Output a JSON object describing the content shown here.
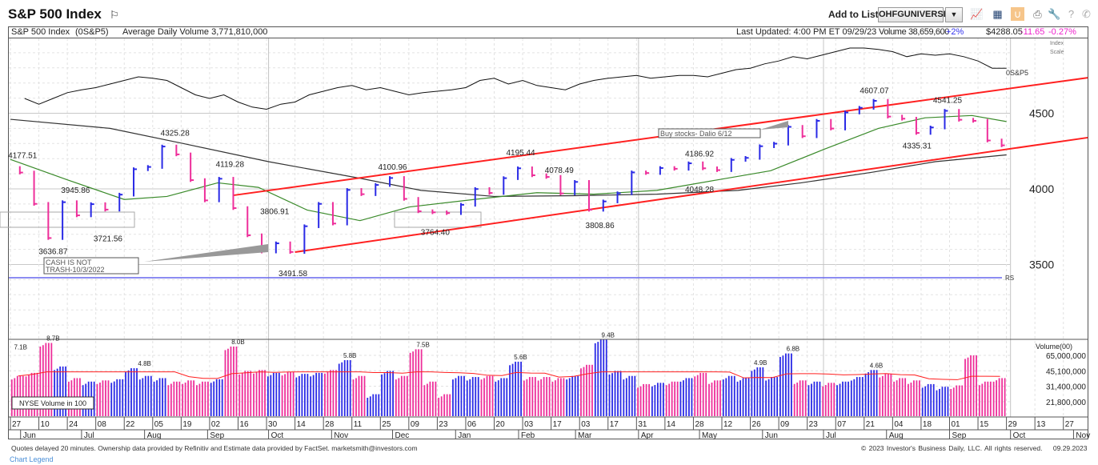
{
  "header": {
    "title": "S&P 500 Index",
    "add_to_list_label": "Add to List:",
    "list_value": "OHFGUNIVERSE",
    "icons": [
      "flag-icon",
      "chevron-down-icon",
      "chart-icon",
      "layout-icon",
      "pattern-icon",
      "print-icon",
      "wrench-icon",
      "help-icon",
      "phone-icon"
    ]
  },
  "infobar": {
    "name": "S&P 500 Index",
    "symbol": "(0S&P5)",
    "avg_volume": "Average Daily Volume 3,771,810,000",
    "last_updated": "Last Updated: 4:00 PM ET 09/29/23",
    "volume": "Volume 38,659,600",
    "volume_change": "+2%",
    "price": "$4288.05",
    "change": "-11.65",
    "change_pct": "-0.27%",
    "index_scale": "Index Scale"
  },
  "footer": {
    "disclaimer": "Quotes delayed 20 minutes. Ownership data provided by Refinitiv and Estimate data provided by FactSet. marketsmith@investors.com",
    "legend_link": "Chart Legend",
    "copyright": "© 2023 Investor's Business Daily, LLC. All rights reserved.",
    "date": "09.29.2023"
  },
  "chart_data": {
    "type": "bar",
    "colors": {
      "up": "#2a2ae6",
      "down": "#ee2e9a",
      "ma50": "#3a8a2a",
      "ma200": "#333333",
      "trend": "#ff2020",
      "volume_ma": "#ff2020",
      "rs": "#6666ee"
    },
    "y_ticks": [
      4500,
      4000,
      3500
    ],
    "ylim": [
      3050,
      4980
    ],
    "price_bars": [
      [
        "2022-06-03",
        4108
      ],
      [
        "2022-06-10",
        3901
      ],
      [
        "2022-06-17",
        3675
      ],
      [
        "2022-06-24",
        3912
      ],
      [
        "2022-07-01",
        3825
      ],
      [
        "2022-07-08",
        3899
      ],
      [
        "2022-07-15",
        3863
      ],
      [
        "2022-07-22",
        3962
      ],
      [
        "2022-07-29",
        4130
      ],
      [
        "2022-08-05",
        4145
      ],
      [
        "2022-08-12",
        4280
      ],
      [
        "2022-08-19",
        4228
      ],
      [
        "2022-08-26",
        4058
      ],
      [
        "2022-09-02",
        3924
      ],
      [
        "2022-09-09",
        4067
      ],
      [
        "2022-09-16",
        3873
      ],
      [
        "2022-09-23",
        3693
      ],
      [
        "2022-09-30",
        3586
      ],
      [
        "2022-10-07",
        3640
      ],
      [
        "2022-10-14",
        3583
      ],
      [
        "2022-10-21",
        3753
      ],
      [
        "2022-10-28",
        3901
      ],
      [
        "2022-11-04",
        3771
      ],
      [
        "2022-11-11",
        3993
      ],
      [
        "2022-11-18",
        3965
      ],
      [
        "2022-11-25",
        4026
      ],
      [
        "2022-12-02",
        4072
      ],
      [
        "2022-12-09",
        3934
      ],
      [
        "2022-12-16",
        3852
      ],
      [
        "2022-12-23",
        3845
      ],
      [
        "2022-12-30",
        3840
      ],
      [
        "2023-01-06",
        3895
      ],
      [
        "2023-01-13",
        3999
      ],
      [
        "2023-01-20",
        3973
      ],
      [
        "2023-01-27",
        4071
      ],
      [
        "2023-02-03",
        4136
      ],
      [
        "2023-02-10",
        4090
      ],
      [
        "2023-02-17",
        4079
      ],
      [
        "2023-02-24",
        3970
      ],
      [
        "2023-03-03",
        4046
      ],
      [
        "2023-03-10",
        3862
      ],
      [
        "2023-03-17",
        3917
      ],
      [
        "2023-03-24",
        3971
      ],
      [
        "2023-03-31",
        4109
      ],
      [
        "2023-04-07",
        4105
      ],
      [
        "2023-04-14",
        4138
      ],
      [
        "2023-04-21",
        4133
      ],
      [
        "2023-04-28",
        4169
      ],
      [
        "2023-05-05",
        4136
      ],
      [
        "2023-05-12",
        4124
      ],
      [
        "2023-05-19",
        4192
      ],
      [
        "2023-05-26",
        4205
      ],
      [
        "2023-06-02",
        4282
      ],
      [
        "2023-06-09",
        4299
      ],
      [
        "2023-06-16",
        4410
      ],
      [
        "2023-06-23",
        4348
      ],
      [
        "2023-06-30",
        4450
      ],
      [
        "2023-07-07",
        4399
      ],
      [
        "2023-07-14",
        4505
      ],
      [
        "2023-07-21",
        4536
      ],
      [
        "2023-07-28",
        4582
      ],
      [
        "2023-08-04",
        4478
      ],
      [
        "2023-08-11",
        4464
      ],
      [
        "2023-08-18",
        4370
      ],
      [
        "2023-08-25",
        4406
      ],
      [
        "2023-09-01",
        4516
      ],
      [
        "2023-09-08",
        4457
      ],
      [
        "2023-09-15",
        4450
      ],
      [
        "2023-09-22",
        4320
      ],
      [
        "2023-09-29",
        4288
      ]
    ],
    "volume_billions": [
      4.0,
      4.3,
      8.7,
      5.0,
      3.8,
      3.5,
      3.6,
      3.7,
      4.8,
      4.0,
      3.8,
      3.5,
      3.6,
      3.5,
      3.7,
      8.0,
      4.5,
      4.6,
      4.3,
      4.4,
      4.2,
      4.3,
      4.6,
      5.8,
      4.0,
      2.6,
      4.5,
      4.0,
      7.5,
      3.5,
      2.6,
      4.0,
      3.9,
      4.0,
      3.8,
      5.6,
      3.9,
      3.9,
      3.8,
      4.0,
      5.2,
      9.4,
      4.5,
      4.0,
      3.3,
      3.4,
      3.5,
      3.8,
      4.3,
      3.6,
      4.0,
      3.8,
      4.9,
      3.9,
      6.8,
      3.6,
      3.5,
      3.4,
      3.5,
      3.9,
      4.6,
      4.2,
      3.8,
      3.6,
      3.3,
      3.1,
      3.2,
      6.5,
      3.5,
      3.8
    ],
    "relative_strength_line": {
      "label": "0S&P5",
      "values": [
        30,
        22,
        30,
        38,
        42,
        45,
        50,
        55,
        60,
        58,
        55,
        45,
        35,
        30,
        35,
        25,
        18,
        15,
        22,
        25,
        35,
        40,
        45,
        48,
        42,
        45,
        40,
        35,
        38,
        40,
        42,
        45,
        55,
        58,
        50,
        55,
        48,
        45,
        42,
        50,
        55,
        58,
        60,
        62,
        58,
        60,
        62,
        62,
        60,
        65,
        70,
        72,
        78,
        82,
        88,
        85,
        90,
        95,
        100,
        100,
        98,
        95,
        88,
        92,
        90,
        92,
        88,
        82,
        72,
        72
      ]
    },
    "ma50": [
      [
        "2022-05-27",
        4195
      ],
      [
        "2022-06-24",
        4060
      ],
      [
        "2022-07-22",
        3930
      ],
      [
        "2022-08-12",
        3950
      ],
      [
        "2022-09-06",
        4040
      ],
      [
        "2022-09-26",
        4010
      ],
      [
        "2022-10-20",
        3860
      ],
      [
        "2022-11-15",
        3790
      ],
      [
        "2022-12-09",
        3880
      ],
      [
        "2023-01-10",
        3930
      ],
      [
        "2023-02-10",
        3975
      ],
      [
        "2023-03-10",
        3965
      ],
      [
        "2023-04-10",
        3990
      ],
      [
        "2023-05-10",
        4060
      ],
      [
        "2023-06-05",
        4120
      ],
      [
        "2023-07-01",
        4260
      ],
      [
        "2023-07-28",
        4400
      ],
      [
        "2023-08-20",
        4470
      ],
      [
        "2023-09-12",
        4485
      ],
      [
        "2023-09-29",
        4445
      ]
    ],
    "ma200": [
      [
        "2022-05-27",
        4460
      ],
      [
        "2022-07-15",
        4400
      ],
      [
        "2022-08-20",
        4300
      ],
      [
        "2022-10-01",
        4180
      ],
      [
        "2022-11-15",
        4070
      ],
      [
        "2022-12-15",
        3990
      ],
      [
        "2023-01-20",
        3950
      ],
      [
        "2023-03-01",
        3955
      ],
      [
        "2023-04-10",
        3965
      ],
      [
        "2023-05-20",
        3990
      ],
      [
        "2023-06-20",
        4040
      ],
      [
        "2023-07-25",
        4110
      ],
      [
        "2023-08-25",
        4180
      ],
      [
        "2023-09-29",
        4225
      ]
    ],
    "trend_lines": [
      {
        "from": [
          "2022-09-14",
          3958
        ],
        "to": [
          "2023-11-08",
          4735
        ]
      },
      {
        "from": [
          "2022-10-14",
          3582
        ],
        "to": [
          "2023-11-08",
          4339
        ]
      }
    ],
    "rs_line_label": "RS",
    "price_labels": [
      {
        "text": "4177.51",
        "date": "2022-06-02",
        "value": 4177.51,
        "pos": "above"
      },
      {
        "text": "3636.87",
        "date": "2022-06-17",
        "value": 3636.87,
        "pos": "below"
      },
      {
        "text": "3945.86",
        "date": "2022-06-28",
        "value": 3945.86,
        "pos": "above"
      },
      {
        "text": "3721.56",
        "date": "2022-07-14",
        "value": 3721.56,
        "pos": "below"
      },
      {
        "text": "4325.28",
        "date": "2022-08-16",
        "value": 4325.28,
        "pos": "above"
      },
      {
        "text": "4119.28",
        "date": "2022-09-12",
        "value": 4119.28,
        "pos": "above"
      },
      {
        "text": "3806.91",
        "date": "2022-10-04",
        "value": 3806.91,
        "pos": "above"
      },
      {
        "text": "3491.58",
        "date": "2022-10-13",
        "value": 3491.58,
        "pos": "below"
      },
      {
        "text": "4100.96",
        "date": "2022-12-01",
        "value": 4100.96,
        "pos": "above"
      },
      {
        "text": "3764.40",
        "date": "2022-12-22",
        "value": 3764.4,
        "pos": "below"
      },
      {
        "text": "4195.44",
        "date": "2023-02-02",
        "value": 4195.44,
        "pos": "above"
      },
      {
        "text": "4078.49",
        "date": "2023-02-21",
        "value": 4078.49,
        "pos": "above"
      },
      {
        "text": "3808.86",
        "date": "2023-03-13",
        "value": 3808.86,
        "pos": "below"
      },
      {
        "text": "4186.92",
        "date": "2023-05-01",
        "value": 4186.92,
        "pos": "above"
      },
      {
        "text": "4048.28",
        "date": "2023-05-01",
        "value": 4048.28,
        "pos": "below"
      },
      {
        "text": "4607.07",
        "date": "2023-07-26",
        "value": 4607.07,
        "pos": "above"
      },
      {
        "text": "4335.31",
        "date": "2023-08-16",
        "value": 4335.31,
        "pos": "below"
      },
      {
        "text": "4541.25",
        "date": "2023-08-31",
        "value": 4541.25,
        "pos": "above"
      }
    ],
    "annotations": [
      {
        "text_lines": [
          "CASH IS NOT",
          "TRASH-10/3/2022"
        ]
      },
      {
        "text_lines": [
          "Buy stocks- Dalio 6/12"
        ]
      }
    ],
    "volume_axis": {
      "title": "Volume(00)",
      "ticks": [
        {
          "label": "65,000,000",
          "value": 6.5
        },
        {
          "label": "45,100,000",
          "value": 4.51
        },
        {
          "label": "31,400,000",
          "value": 3.14
        },
        {
          "label": "21,800,000",
          "value": 2.18
        }
      ]
    },
    "volume_labels": [
      {
        "text": "7.1B",
        "date": "2022-06-01",
        "value": 7.1
      },
      {
        "text": "8.7B",
        "date": "2022-06-17",
        "value": 8.7
      },
      {
        "text": "4.8B",
        "date": "2022-08-01",
        "value": 4.8
      },
      {
        "text": "8.0B",
        "date": "2022-09-16",
        "value": 8.0
      },
      {
        "text": "5.8B",
        "date": "2022-11-10",
        "value": 5.8
      },
      {
        "text": "7.5B",
        "date": "2022-12-16",
        "value": 7.5
      },
      {
        "text": "5.6B",
        "date": "2023-02-02",
        "value": 5.6
      },
      {
        "text": "9.4B",
        "date": "2023-03-17",
        "value": 9.4
      },
      {
        "text": "4.9B",
        "date": "2023-05-31",
        "value": 4.9
      },
      {
        "text": "6.8B",
        "date": "2023-06-16",
        "value": 6.8
      },
      {
        "text": "4.6B",
        "date": "2023-07-27",
        "value": 4.6
      }
    ],
    "volume_box_label": "NYSE Volume in 100",
    "x_ticks": [
      [
        "2022-05-27",
        "27"
      ],
      [
        "2022-06-10",
        "10"
      ],
      [
        "2022-06-24",
        "24"
      ],
      [
        "2022-07-08",
        "08"
      ],
      [
        "2022-07-22",
        "22"
      ],
      [
        "2022-08-05",
        "05"
      ],
      [
        "2022-08-19",
        "19"
      ],
      [
        "2022-09-02",
        "02"
      ],
      [
        "2022-09-16",
        "16"
      ],
      [
        "2022-09-30",
        "30"
      ],
      [
        "2022-10-14",
        "14"
      ],
      [
        "2022-10-28",
        "28"
      ],
      [
        "2022-11-11",
        "11"
      ],
      [
        "2022-11-25",
        "25"
      ],
      [
        "2022-12-09",
        "09"
      ],
      [
        "2022-12-23",
        "23"
      ],
      [
        "2023-01-06",
        "06"
      ],
      [
        "2023-01-20",
        "20"
      ],
      [
        "2023-02-03",
        "03"
      ],
      [
        "2023-02-17",
        "17"
      ],
      [
        "2023-03-03",
        "03"
      ],
      [
        "2023-03-17",
        "17"
      ],
      [
        "2023-03-31",
        "31"
      ],
      [
        "2023-04-14",
        "14"
      ],
      [
        "2023-04-28",
        "28"
      ],
      [
        "2023-05-12",
        "12"
      ],
      [
        "2023-05-26",
        "26"
      ],
      [
        "2023-06-09",
        "09"
      ],
      [
        "2023-06-23",
        "23"
      ],
      [
        "2023-07-07",
        "07"
      ],
      [
        "2023-07-21",
        "21"
      ],
      [
        "2023-08-04",
        "04"
      ],
      [
        "2023-08-18",
        "18"
      ],
      [
        "2023-09-01",
        "01"
      ],
      [
        "2023-09-15",
        "15"
      ],
      [
        "2023-09-29",
        "29"
      ],
      [
        "2023-10-13",
        "13"
      ],
      [
        "2023-10-27",
        "27"
      ]
    ],
    "months": [
      [
        "2022-06-01",
        "Jun"
      ],
      [
        "2022-07-01",
        "Jul"
      ],
      [
        "2022-08-01",
        "Aug"
      ],
      [
        "2022-09-01",
        "Sep"
      ],
      [
        "2022-10-01",
        "Oct"
      ],
      [
        "2022-11-01",
        "Nov"
      ],
      [
        "2022-12-01",
        "Dec"
      ],
      [
        "2023-01-01",
        "Jan"
      ],
      [
        "2023-02-01",
        "Feb"
      ],
      [
        "2023-03-01",
        "Mar"
      ],
      [
        "2023-04-01",
        "Apr"
      ],
      [
        "2023-05-01",
        "May"
      ],
      [
        "2023-06-01",
        "Jun"
      ],
      [
        "2023-07-01",
        "Jul"
      ],
      [
        "2023-08-01",
        "Aug"
      ],
      [
        "2023-09-01",
        "Sep"
      ],
      [
        "2023-10-01",
        "Oct"
      ],
      [
        "2023-11-01",
        "Nov"
      ]
    ]
  }
}
